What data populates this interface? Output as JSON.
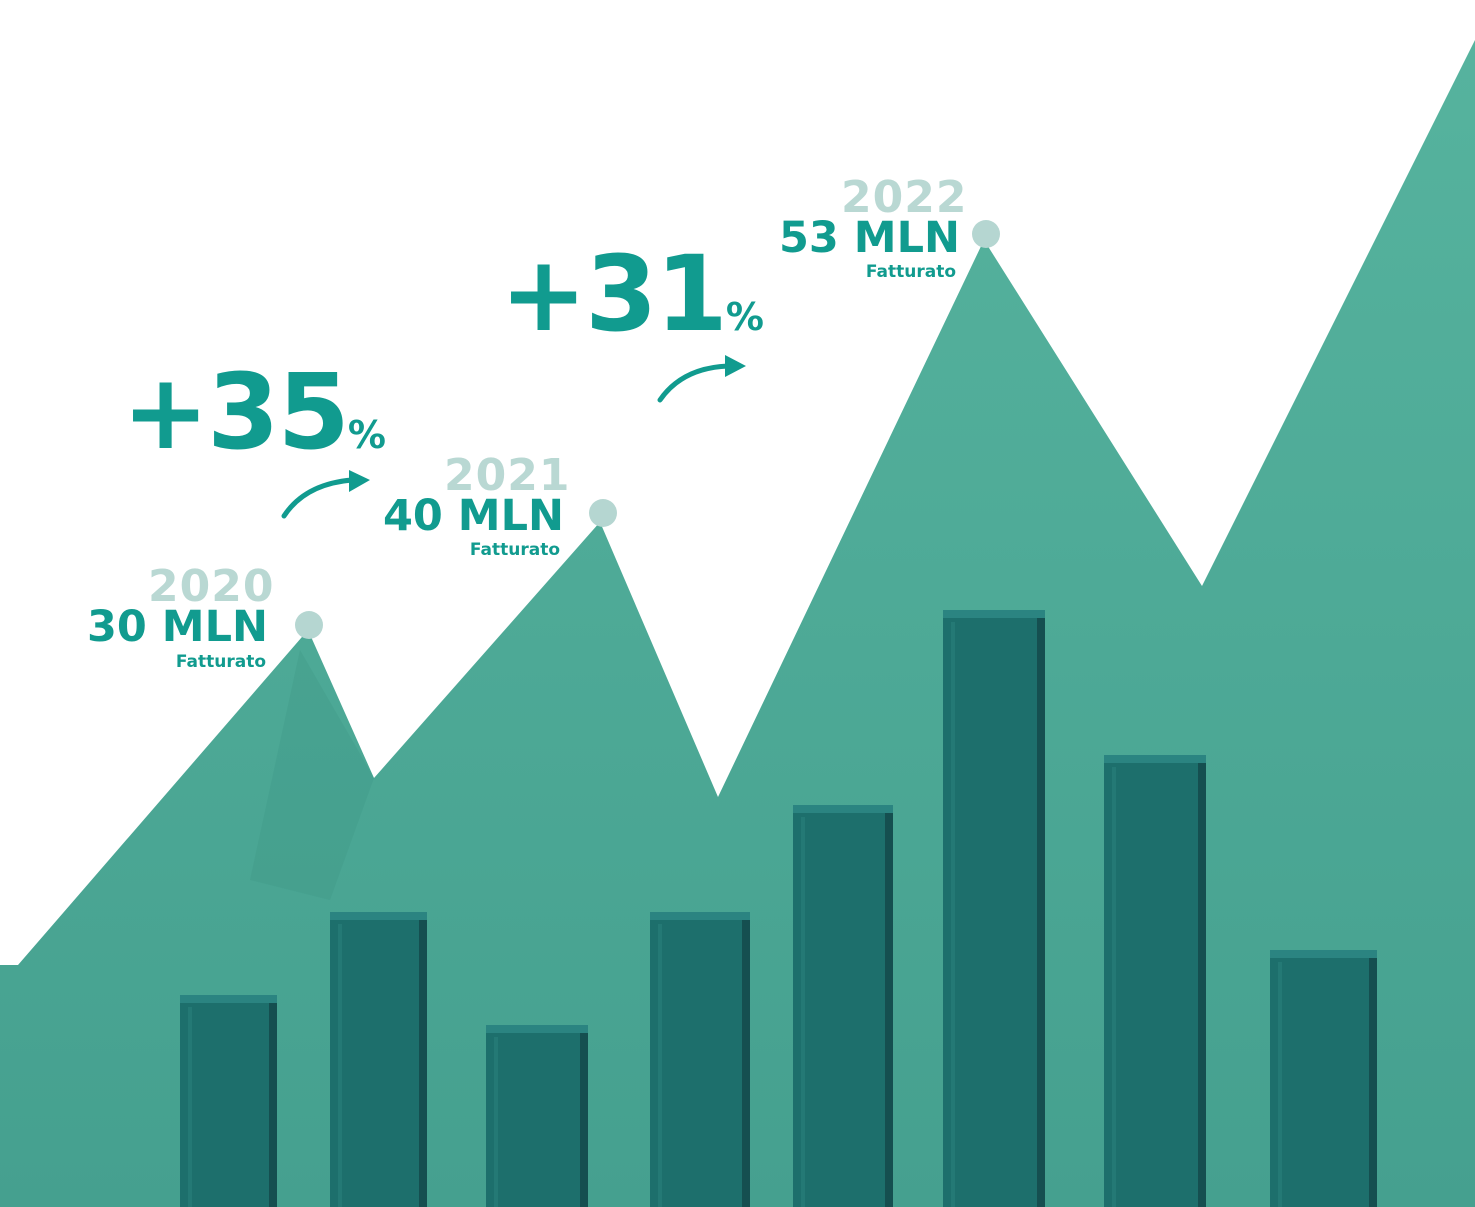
{
  "chart_data": {
    "type": "line",
    "title": "",
    "x": [
      "2020",
      "2021",
      "2022"
    ],
    "series": [
      {
        "values": [
          30,
          40,
          53
        ]
      }
    ],
    "unit": "MLN",
    "point_caption": "Fatturato",
    "growth_labels": [
      {
        "from": "2020",
        "to": "2021",
        "value": "+35",
        "symbol": "%"
      },
      {
        "from": "2021",
        "to": "2022",
        "value": "+31",
        "symbol": "%"
      }
    ]
  },
  "labels": {
    "points": [
      {
        "year": "2020",
        "value": "30 MLN",
        "caption": "Fatturato"
      },
      {
        "year": "2021",
        "value": "40 MLN",
        "caption": "Fatturato"
      },
      {
        "year": "2022",
        "value": "53 MLN",
        "caption": "Fatturato"
      }
    ],
    "growth": [
      {
        "number": "+35",
        "symbol": "%"
      },
      {
        "number": "+31",
        "symbol": "%"
      }
    ]
  },
  "colors": {
    "background": "#ffffff",
    "paper_mountain": "#4fad98",
    "paper_mountain_shadow": "#3f9887",
    "bar_face": "#1d6f6c",
    "bar_side": "#154f50",
    "bar_top": "#2b8481",
    "accent_text": "#119b8f",
    "year_text": "#b9d8d3",
    "point_dot": "#b5d6d1"
  }
}
